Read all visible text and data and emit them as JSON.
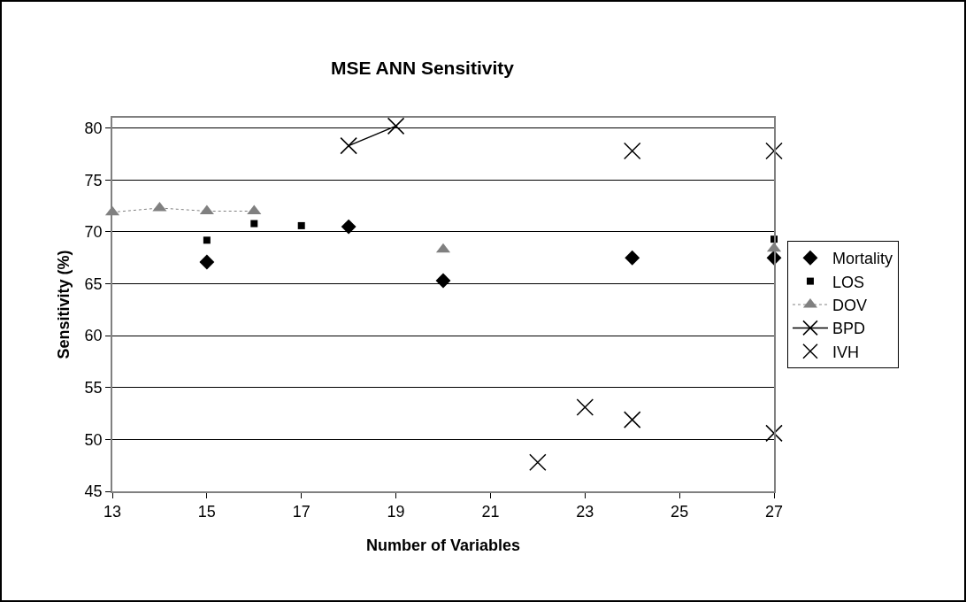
{
  "chart_data": {
    "type": "scatter",
    "title": "MSE ANN Sensitivity",
    "xlabel": "Number of Variables",
    "ylabel": "Sensitivity (%)",
    "x": [
      13,
      14,
      15,
      16,
      17,
      18,
      19,
      20,
      21,
      22,
      23,
      24,
      25,
      26,
      27
    ],
    "series": [
      {
        "name": "Mortality",
        "marker": "diamond",
        "color": "#000000",
        "values": [
          null,
          null,
          67.1,
          null,
          null,
          70.5,
          null,
          65.3,
          null,
          null,
          null,
          67.5,
          null,
          null,
          67.5
        ]
      },
      {
        "name": "LOS",
        "marker": "square",
        "color": "#000000",
        "values": [
          null,
          null,
          69.2,
          70.8,
          70.6,
          null,
          null,
          null,
          null,
          null,
          null,
          null,
          null,
          null,
          69.3
        ]
      },
      {
        "name": "DOV",
        "type": "line",
        "marker": "triangle",
        "line_style": "dotted",
        "color": "#808080",
        "values": [
          71.9,
          72.3,
          72.0,
          72.0,
          null,
          null,
          null,
          68.3,
          null,
          null,
          null,
          null,
          null,
          null,
          68.4
        ]
      },
      {
        "name": "BPD",
        "type": "line",
        "marker": "cross",
        "line_style": "solid",
        "color": "#000000",
        "values": [
          null,
          null,
          null,
          null,
          null,
          78.3,
          80.2,
          null,
          null,
          null,
          null,
          77.8,
          null,
          null,
          77.8
        ]
      },
      {
        "name": "IVH",
        "marker": "cross",
        "color": "#000000",
        "values": [
          null,
          null,
          null,
          null,
          null,
          null,
          null,
          null,
          null,
          47.8,
          53.1,
          51.9,
          null,
          null,
          50.6
        ]
      }
    ],
    "xlim": [
      13,
      27
    ],
    "xticks": [
      13,
      15,
      17,
      19,
      21,
      23,
      25,
      27
    ],
    "ylim": [
      45,
      81
    ],
    "yticks": [
      45,
      50,
      55,
      60,
      65,
      70,
      75,
      80
    ],
    "grid": "y",
    "legend": "right"
  }
}
